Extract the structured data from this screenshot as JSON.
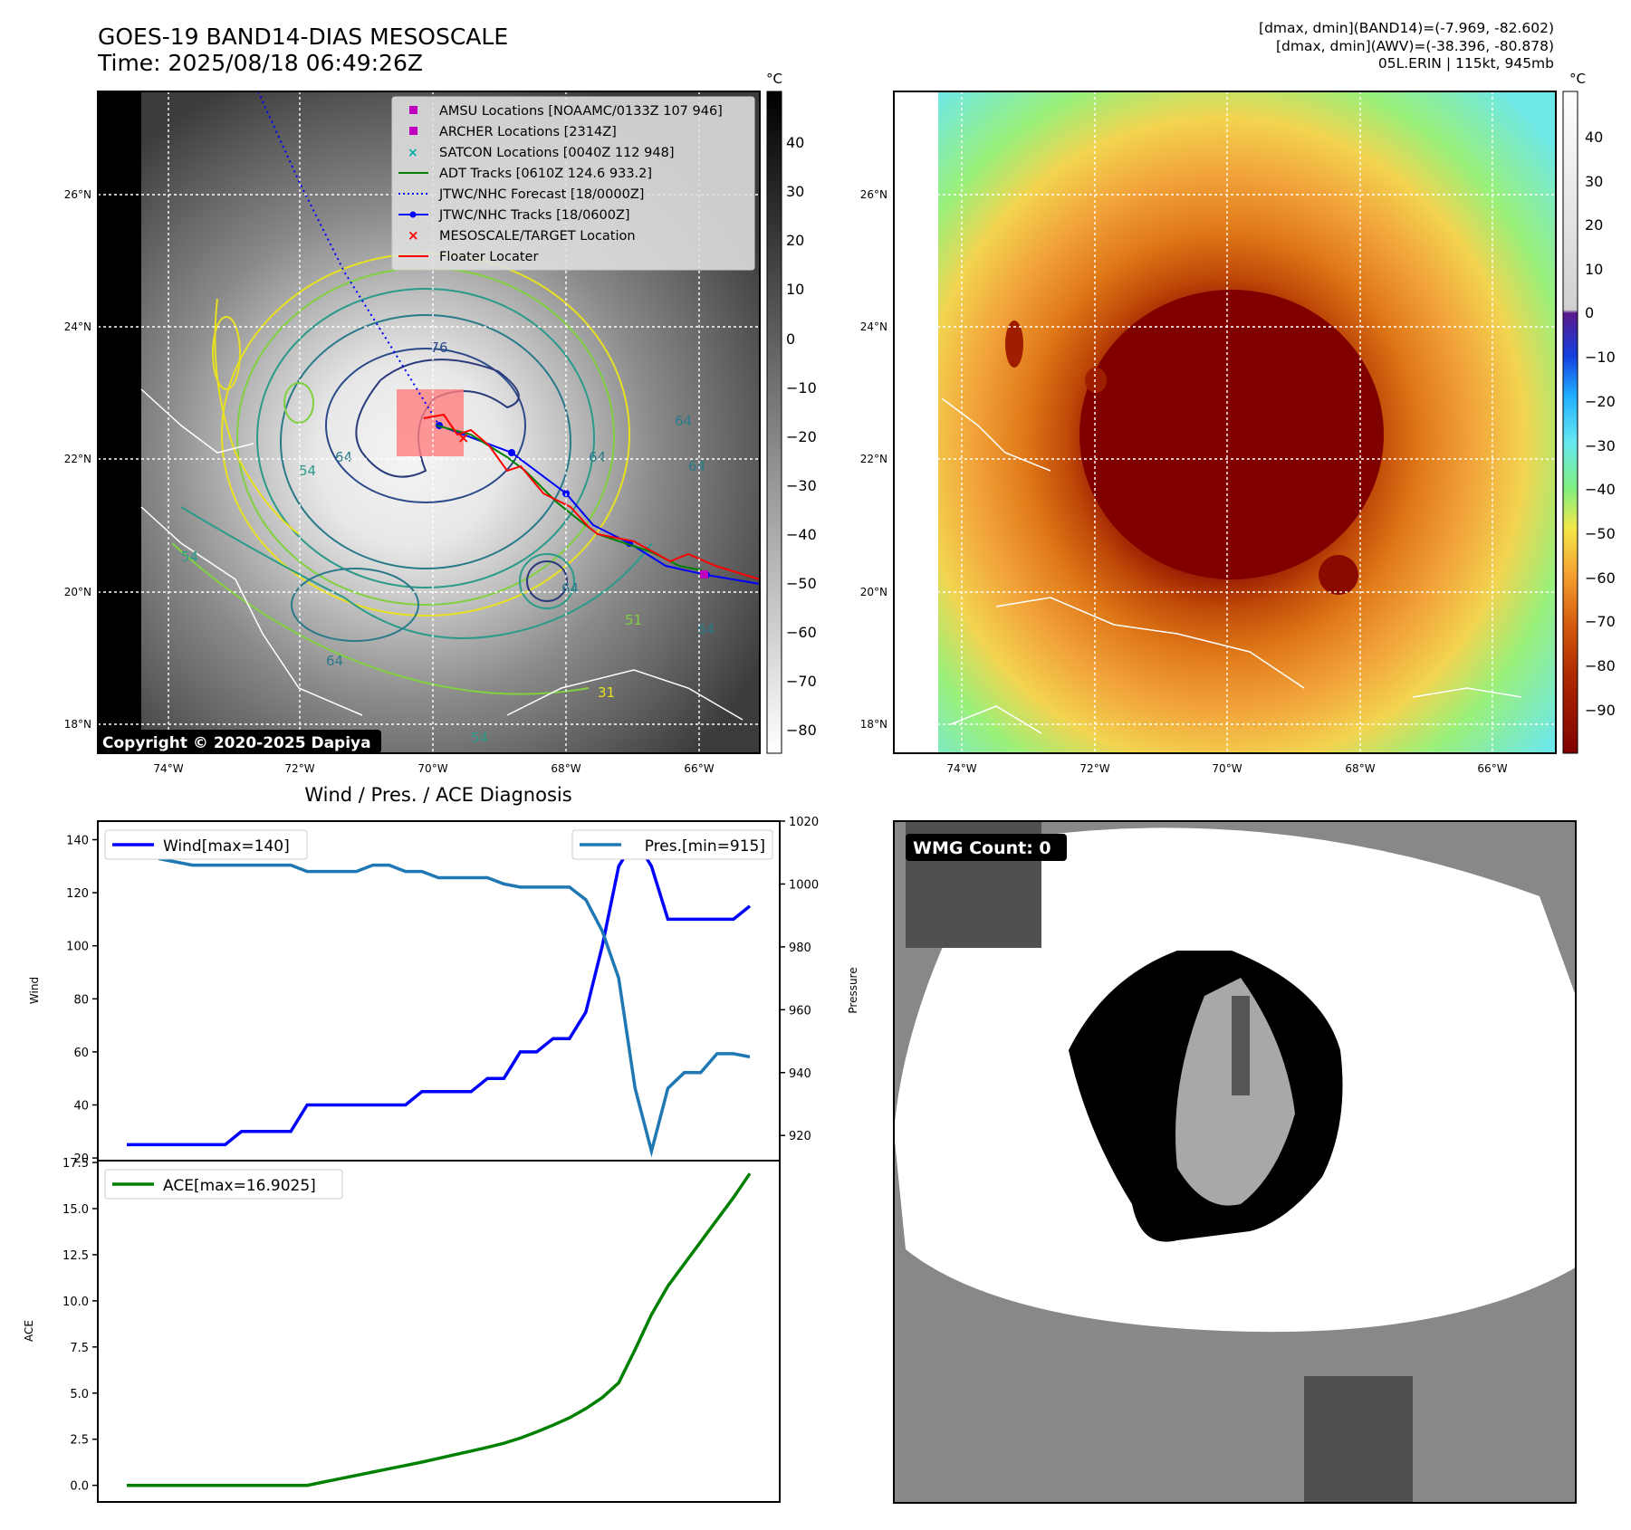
{
  "header": {
    "title_line1": "GOES-19 BAND14-DIAS MESOSCALE",
    "title_line2": "Time: 2025/08/18 06:49:26Z",
    "stats_line1": "[dmax, dmin](BAND14)=(-7.969, -82.602)",
    "stats_line2": "[dmax, dmin](AWV)=(-38.396, -80.878)",
    "stats_line3": "05L.ERIN | 115kt, 945mb"
  },
  "map_common": {
    "lon_labels": [
      "74°W",
      "72°W",
      "70°W",
      "68°W",
      "66°W"
    ],
    "lat_labels": [
      "26°N",
      "24°N",
      "22°N",
      "20°N",
      "18°N"
    ]
  },
  "ir_panel": {
    "copyright": "Copyright © 2020-2025 Dapiya",
    "colorbar_unit": "°C",
    "colorbar_ticks": [
      "40",
      "30",
      "20",
      "10",
      "0",
      "−10",
      "−20",
      "−30",
      "−40",
      "−50",
      "−60",
      "−70",
      "−80"
    ],
    "contour_labels": [
      "-76",
      "64",
      "64",
      "64",
      "54",
      "51",
      "64",
      "64",
      "54",
      "64",
      "31",
      "64",
      "54"
    ],
    "legend": [
      {
        "label": "AMSU Locations [NOAAMC/0133Z 107 946]",
        "marker": "square",
        "color": "#c000c0"
      },
      {
        "label": "ARCHER Locations [2314Z]",
        "marker": "square",
        "color": "#c000c0"
      },
      {
        "label": "SATCON Locations [0040Z 112 948]",
        "marker": "x",
        "color": "#00b0b0"
      },
      {
        "label": "ADT Tracks [0610Z 124.6 933.2]",
        "marker": "line",
        "color": "#008000"
      },
      {
        "label": "JTWC/NHC Forecast [18/0000Z]",
        "marker": "dotted",
        "color": "#0000ff"
      },
      {
        "label": "JTWC/NHC Tracks [18/0600Z]",
        "marker": "line-dot",
        "color": "#0000ff"
      },
      {
        "label": "MESOSCALE/TARGET Location",
        "marker": "x",
        "color": "#ff0000"
      },
      {
        "label": "Floater Locater",
        "marker": "line",
        "color": "#ff0000"
      }
    ]
  },
  "awv_panel": {
    "colorbar_unit": "°C",
    "colorbar_ticks": [
      "40",
      "30",
      "20",
      "10",
      "0",
      "−10",
      "−20",
      "−30",
      "−40",
      "−50",
      "−60",
      "−70",
      "−80",
      "−90"
    ]
  },
  "wmg_panel": {
    "badge": "WMG Count: 0"
  },
  "chart_data": [
    {
      "type": "line",
      "title": "Wind / Pres. / ACE Diagnosis",
      "ylabel": "Wind",
      "ylabel_right": "Pressure",
      "ylim": [
        19,
        147
      ],
      "ylim_right": [
        912,
        1020
      ],
      "yticks": [
        20,
        40,
        60,
        80,
        100,
        120,
        140
      ],
      "yticks_right": [
        920,
        940,
        960,
        980,
        1000,
        1020
      ],
      "x": [
        0,
        1,
        2,
        3,
        4,
        5,
        6,
        7,
        8,
        9,
        10,
        11,
        12,
        13,
        14,
        15,
        16,
        17,
        18,
        19,
        20,
        21,
        22,
        23,
        24,
        25,
        26,
        27,
        28,
        29,
        30,
        31,
        32,
        33,
        34,
        35,
        36,
        37,
        38
      ],
      "series": [
        {
          "name": "Wind[max=140]",
          "axis": "left",
          "color": "#0000ff",
          "values": [
            25,
            25,
            25,
            25,
            25,
            25,
            25,
            30,
            30,
            30,
            30,
            40,
            40,
            40,
            40,
            40,
            40,
            40,
            45,
            45,
            45,
            45,
            50,
            50,
            60,
            60,
            65,
            65,
            75,
            100,
            130,
            140,
            130,
            110,
            110,
            110,
            110,
            110,
            115
          ]
        },
        {
          "name": "Pres.[min=915]",
          "axis": "right",
          "color": "#1f77b4",
          "values": [
            1014,
            1014,
            1008,
            1007,
            1006,
            1006,
            1006,
            1006,
            1006,
            1006,
            1006,
            1004,
            1004,
            1004,
            1004,
            1006,
            1006,
            1004,
            1004,
            1002,
            1002,
            1002,
            1002,
            1000,
            999,
            999,
            999,
            999,
            995,
            985,
            970,
            935,
            915,
            935,
            940,
            940,
            946,
            946,
            945
          ]
        }
      ]
    },
    {
      "type": "line",
      "title": "",
      "ylabel": "ACE",
      "ylim": [
        -0.9,
        17.6
      ],
      "yticks": [
        0.0,
        2.5,
        5.0,
        7.5,
        10.0,
        12.5,
        15.0,
        17.5
      ],
      "ytick_labels": [
        "0.0",
        "2.5",
        "5.0",
        "7.5",
        "10.0",
        "12.5",
        "15.0",
        "17.5"
      ],
      "x": [
        0,
        1,
        2,
        3,
        4,
        5,
        6,
        7,
        8,
        9,
        10,
        11,
        12,
        13,
        14,
        15,
        16,
        17,
        18,
        19,
        20,
        21,
        22,
        23,
        24,
        25,
        26,
        27,
        28,
        29,
        30,
        31,
        32,
        33,
        34,
        35,
        36,
        37,
        38
      ],
      "series": [
        {
          "name": "ACE[max=16.9025]",
          "color": "#008000",
          "values": [
            0,
            0,
            0,
            0,
            0,
            0,
            0,
            0,
            0,
            0,
            0,
            0,
            0.18,
            0.36,
            0.54,
            0.72,
            0.9,
            1.08,
            1.26,
            1.46,
            1.66,
            1.86,
            2.06,
            2.28,
            2.56,
            2.9,
            3.26,
            3.66,
            4.16,
            4.76,
            5.56,
            7.36,
            9.26,
            10.8,
            12.0,
            13.2,
            14.4,
            15.6,
            16.9025
          ]
        }
      ]
    }
  ]
}
